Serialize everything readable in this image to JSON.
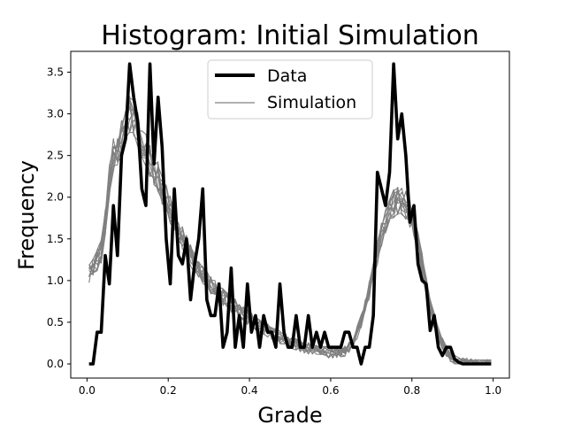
{
  "chart_data": {
    "type": "line",
    "title": "Histogram: Initial Simulation",
    "xlabel": "Grade",
    "ylabel": "Frequency",
    "xlim": [
      -0.04,
      1.04
    ],
    "ylim": [
      -0.17,
      3.75
    ],
    "xticks": [
      0.0,
      0.2,
      0.4,
      0.6,
      0.8,
      1.0
    ],
    "xtick_labels": [
      "0.0",
      "0.2",
      "0.4",
      "0.6",
      "0.8",
      "1.0"
    ],
    "yticks": [
      0.0,
      0.5,
      1.0,
      1.5,
      2.0,
      2.5,
      3.0,
      3.5
    ],
    "ytick_labels": [
      "0.0",
      "0.5",
      "1.0",
      "1.5",
      "2.0",
      "2.5",
      "3.0",
      "3.5"
    ],
    "legend": {
      "placement": "upper center",
      "entries": [
        "Data",
        "Simulation"
      ]
    },
    "colors": {
      "data": "#000000",
      "simulation": "#808080"
    },
    "x": [
      0.005,
      0.015,
      0.025,
      0.035,
      0.045,
      0.055,
      0.065,
      0.075,
      0.085,
      0.095,
      0.105,
      0.115,
      0.125,
      0.135,
      0.145,
      0.155,
      0.165,
      0.175,
      0.185,
      0.195,
      0.205,
      0.215,
      0.225,
      0.235,
      0.245,
      0.255,
      0.265,
      0.275,
      0.285,
      0.295,
      0.305,
      0.315,
      0.325,
      0.335,
      0.345,
      0.355,
      0.365,
      0.375,
      0.385,
      0.395,
      0.405,
      0.415,
      0.425,
      0.435,
      0.445,
      0.455,
      0.465,
      0.475,
      0.485,
      0.495,
      0.505,
      0.515,
      0.525,
      0.535,
      0.545,
      0.555,
      0.565,
      0.575,
      0.585,
      0.595,
      0.605,
      0.615,
      0.625,
      0.635,
      0.645,
      0.655,
      0.665,
      0.675,
      0.685,
      0.695,
      0.705,
      0.715,
      0.725,
      0.735,
      0.745,
      0.755,
      0.765,
      0.775,
      0.785,
      0.795,
      0.805,
      0.815,
      0.825,
      0.835,
      0.845,
      0.855,
      0.865,
      0.875,
      0.885,
      0.895,
      0.905,
      0.915,
      0.925,
      0.935,
      0.945,
      0.955,
      0.965,
      0.975,
      0.985,
      0.995
    ],
    "series": [
      {
        "name": "Data",
        "values": [
          0,
          0,
          0.38,
          0.38,
          1.3,
          0.96,
          1.9,
          1.3,
          2.5,
          2.7,
          3.6,
          3.2,
          2.9,
          2.1,
          1.9,
          3.6,
          2.4,
          3.2,
          2.6,
          1.5,
          0.96,
          2.1,
          1.3,
          1.2,
          1.5,
          0.77,
          1.2,
          1.5,
          2.1,
          0.77,
          0.58,
          0.58,
          0.96,
          0.2,
          0.38,
          1.15,
          0.2,
          0.58,
          0.2,
          0.96,
          0.38,
          0.58,
          0.2,
          0.58,
          0.38,
          0.38,
          0.2,
          0.96,
          0.38,
          0.2,
          0.2,
          0.58,
          0.2,
          0.2,
          0.58,
          0.2,
          0.38,
          0.2,
          0.38,
          0.2,
          0.2,
          0.2,
          0.2,
          0.38,
          0.38,
          0.2,
          0.2,
          0,
          0.2,
          0.2,
          0.58,
          2.3,
          2.1,
          1.9,
          2.3,
          3.6,
          2.7,
          3.0,
          2.5,
          1.7,
          1.9,
          1.2,
          1.0,
          0.96,
          0.4,
          0.58,
          0.2,
          0.1,
          0.2,
          0.2,
          0.06,
          0.02,
          0,
          0,
          0,
          0,
          0,
          0,
          0,
          0
        ]
      },
      {
        "name": "Simulation",
        "values": [
          1.1,
          1.15,
          1.25,
          1.35,
          1.7,
          2.2,
          2.5,
          2.55,
          2.7,
          2.85,
          3.0,
          2.95,
          2.8,
          2.65,
          2.55,
          2.45,
          2.35,
          2.25,
          2.1,
          2.0,
          1.85,
          1.72,
          1.6,
          1.5,
          1.4,
          1.3,
          1.22,
          1.14,
          1.06,
          1.0,
          0.95,
          0.9,
          0.85,
          0.8,
          0.76,
          0.72,
          0.68,
          0.64,
          0.6,
          0.56,
          0.52,
          0.49,
          0.46,
          0.43,
          0.4,
          0.37,
          0.34,
          0.32,
          0.3,
          0.28,
          0.26,
          0.24,
          0.22,
          0.2,
          0.19,
          0.18,
          0.17,
          0.16,
          0.15,
          0.14,
          0.13,
          0.13,
          0.14,
          0.16,
          0.2,
          0.27,
          0.37,
          0.5,
          0.67,
          0.88,
          1.1,
          1.33,
          1.55,
          1.72,
          1.85,
          1.92,
          1.95,
          1.95,
          1.9,
          1.8,
          1.65,
          1.45,
          1.2,
          0.95,
          0.72,
          0.52,
          0.36,
          0.24,
          0.15,
          0.09,
          0.05,
          0.03,
          0.02,
          0.01,
          0.01,
          0,
          0,
          0,
          0,
          0
        ]
      }
    ]
  }
}
